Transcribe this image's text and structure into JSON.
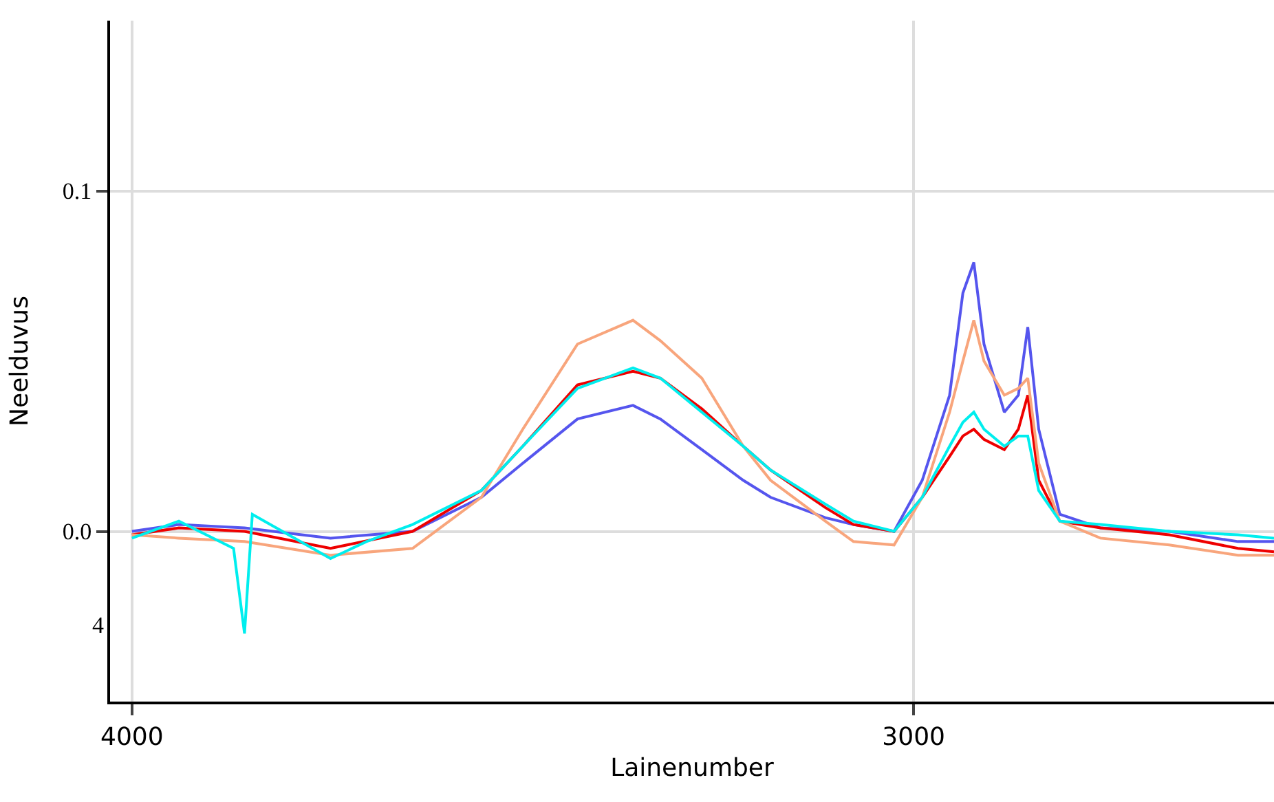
{
  "chart_data": {
    "type": "line",
    "xlabel": "Lainenumber",
    "ylabel": "Neelduvus",
    "xlim": [
      4028,
      2539
    ],
    "xticks": [
      4000,
      3000
    ],
    "ylim": [
      -0.05,
      0.15
    ],
    "yticks": [
      {
        "value": 0.0,
        "label": "0.0"
      },
      0.1
    ],
    "grid": true,
    "annotations": [
      "4"
    ],
    "series": [
      {
        "color": "#5555ee",
        "x": [
          4000,
          3940,
          3856,
          3746,
          3641,
          3553,
          3500,
          3430,
          3359,
          3324,
          3271,
          3218,
          3183,
          3113,
          3077,
          3025,
          2989,
          2954,
          2937,
          2923,
          2910,
          2884,
          2866,
          2854,
          2840,
          2813,
          2761,
          2673,
          2585,
          2539
        ],
        "values": [
          0,
          0.002,
          0.001,
          -0.002,
          0,
          0.01,
          0.02,
          0.033,
          0.037,
          0.033,
          0.024,
          0.015,
          0.01,
          0.004,
          0.002,
          0,
          0.015,
          0.04,
          0.07,
          0.079,
          0.055,
          0.035,
          0.04,
          0.06,
          0.03,
          0.005,
          0.001,
          0,
          -0.003,
          -0.003
        ]
      },
      {
        "color": "#ee0000",
        "x": [
          4000,
          3940,
          3856,
          3746,
          3641,
          3553,
          3500,
          3430,
          3359,
          3324,
          3271,
          3218,
          3183,
          3113,
          3077,
          3025,
          2989,
          2954,
          2937,
          2923,
          2910,
          2884,
          2866,
          2854,
          2840,
          2813,
          2761,
          2673,
          2585,
          2539
        ],
        "values": [
          -0.001,
          0.001,
          0,
          -0.005,
          0,
          0.012,
          0.025,
          0.043,
          0.047,
          0.045,
          0.036,
          0.025,
          0.018,
          0.007,
          0.002,
          0,
          0.01,
          0.022,
          0.028,
          0.03,
          0.027,
          0.024,
          0.03,
          0.04,
          0.015,
          0.003,
          0.001,
          -0.001,
          -0.005,
          -0.006
        ]
      },
      {
        "color": "#f8a57c",
        "x": [
          4000,
          3940,
          3856,
          3746,
          3641,
          3553,
          3500,
          3430,
          3359,
          3324,
          3271,
          3218,
          3183,
          3113,
          3077,
          3025,
          2989,
          2954,
          2937,
          2923,
          2910,
          2884,
          2866,
          2854,
          2840,
          2813,
          2761,
          2673,
          2585,
          2539
        ],
        "values": [
          -0.001,
          -0.002,
          -0.003,
          -0.007,
          -0.005,
          0.01,
          0.03,
          0.055,
          0.062,
          0.056,
          0.045,
          0.025,
          0.015,
          0.003,
          -0.003,
          -0.004,
          0.01,
          0.035,
          0.05,
          0.062,
          0.05,
          0.04,
          0.042,
          0.045,
          0.02,
          0.003,
          -0.002,
          -0.004,
          -0.007,
          -0.007
        ]
      },
      {
        "color": "#00eeee",
        "x": [
          4000,
          3940,
          3870,
          3856,
          3846,
          3746,
          3700,
          3641,
          3553,
          3500,
          3430,
          3359,
          3324,
          3271,
          3218,
          3183,
          3113,
          3077,
          3025,
          2989,
          2954,
          2937,
          2923,
          2910,
          2884,
          2866,
          2854,
          2840,
          2813,
          2761,
          2673,
          2585,
          2539
        ],
        "values": [
          -0.002,
          0.003,
          -0.005,
          -0.03,
          0.005,
          -0.008,
          -0.003,
          0.002,
          0.012,
          0.025,
          0.042,
          0.048,
          0.045,
          0.035,
          0.025,
          0.018,
          0.008,
          0.003,
          0,
          0.01,
          0.025,
          0.032,
          0.035,
          0.03,
          0.025,
          0.028,
          0.028,
          0.012,
          0.003,
          0.002,
          0,
          -0.001,
          -0.002
        ]
      }
    ]
  }
}
